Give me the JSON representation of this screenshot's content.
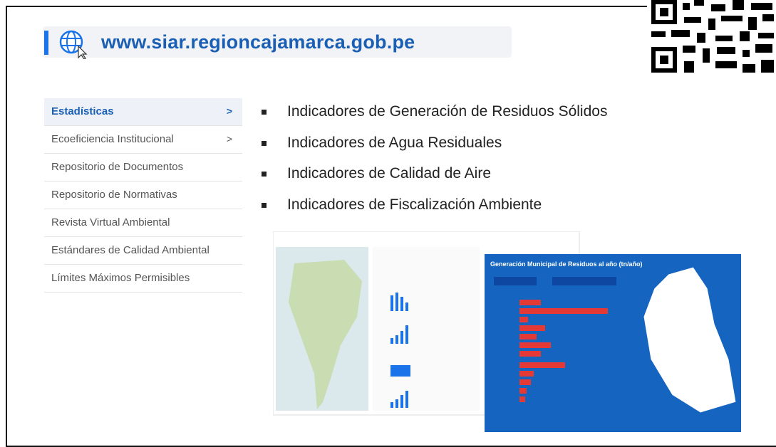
{
  "header": {
    "url": "www.siar.regioncajamarca.gob.pe"
  },
  "menu": {
    "items": [
      {
        "label": "Estadísticas",
        "arrow": ">"
      },
      {
        "label": "Ecoeficiencia Institucional",
        "arrow": ">"
      },
      {
        "label": "Repositorio de Documentos"
      },
      {
        "label": "Repositorio de Normativas"
      },
      {
        "label": "Revista Virtual Ambiental"
      },
      {
        "label": "Estándares de Calidad Ambiental"
      },
      {
        "label": "Límites Máximos Permisibles"
      }
    ]
  },
  "bullets": [
    "Indicadores de Generación de Residuos Sólidos",
    "Indicadores de Agua Residuales",
    "Indicadores de Calidad de Aire",
    "Indicadores de Fiscalización Ambiente"
  ],
  "panel": {
    "title": "Generación Municipal de Residuos al año (tn/año)"
  }
}
